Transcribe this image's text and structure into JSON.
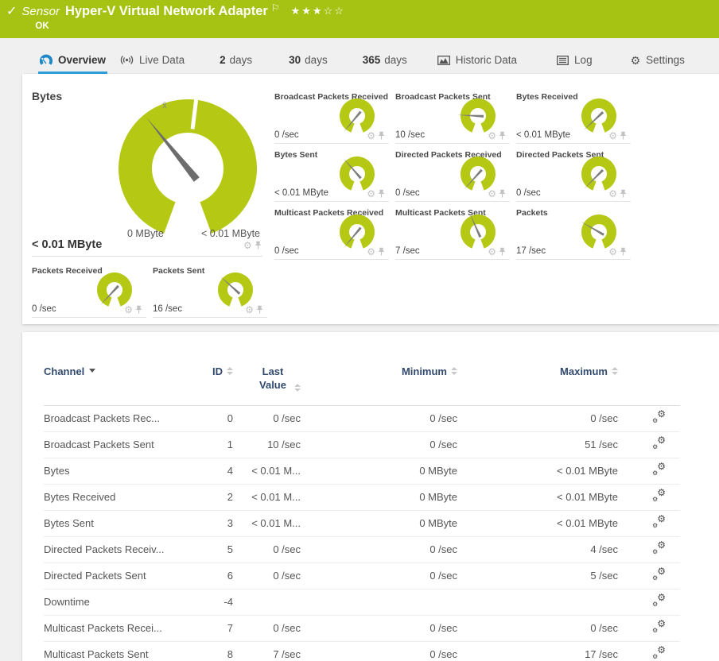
{
  "colors": {
    "header_green": "#a6c313",
    "gauge_green": "#b5c814",
    "accent_blue": "#2e9fd9",
    "table_header_text": "#32496e",
    "page_bg": "#f0f0f0",
    "panel_bg": "#ffffff",
    "needle_gray": "#6d6d6d",
    "icon_gray": "#c2c2c2",
    "tab_icon_gray": "#555555"
  },
  "header": {
    "kind": "Sensor",
    "title": "Hyper-V Virtual Network Adapter",
    "status": "OK",
    "stars_filled": 3,
    "stars_total": 5
  },
  "tabs": [
    {
      "id": "overview",
      "label": "Overview",
      "icon": "gauge-icon",
      "active": true
    },
    {
      "id": "live-data",
      "label": "Live Data",
      "icon": "live-icon",
      "active": false
    },
    {
      "id": "2-days",
      "num": "2",
      "label": "days",
      "active": false
    },
    {
      "id": "30-days",
      "num": "30",
      "label": "days",
      "active": false
    },
    {
      "id": "365-days",
      "num": "365",
      "label": "days",
      "active": false
    },
    {
      "id": "historic-data",
      "label": "Historic Data",
      "icon": "chart-icon",
      "active": false
    },
    {
      "id": "log",
      "label": "Log",
      "icon": "log-icon",
      "active": false
    },
    {
      "id": "settings",
      "label": "Settings",
      "icon": "gear-icon",
      "active": false
    }
  ],
  "gauges": {
    "primary": {
      "name": "Bytes",
      "value": "< 0.01 MByte",
      "scale_min": "0 MByte",
      "scale_max": "< 0.01 MByte",
      "mean_marker": "x̄",
      "needle_angle": 231
    },
    "tiles": [
      {
        "name": "Broadcast Packets Received",
        "value": "0 /sec",
        "needle_angle": 130
      },
      {
        "name": "Broadcast Packets Sent",
        "value": "10 /sec",
        "needle_angle": 183
      },
      {
        "name": "Bytes Received",
        "value": "< 0.01 MByte",
        "needle_angle": 137
      },
      {
        "name": "Bytes Sent",
        "value": "< 0.01 MByte",
        "needle_angle": 229
      },
      {
        "name": "Directed Packets Received",
        "value": "0 /sec",
        "needle_angle": 132
      },
      {
        "name": "Directed Packets Sent",
        "value": "0 /sec",
        "needle_angle": 135
      },
      {
        "name": "Multicast Packets Received",
        "value": "0 /sec",
        "needle_angle": 130
      },
      {
        "name": "Multicast Packets Sent",
        "value": "7 /sec",
        "needle_angle": 246
      },
      {
        "name": "Packets",
        "value": "17 /sec",
        "needle_angle": 210
      },
      {
        "name": "Packets Received",
        "value": "0 /sec",
        "needle_angle": 133
      },
      {
        "name": "Packets Sent",
        "value": "16 /sec",
        "needle_angle": 222
      }
    ]
  },
  "table": {
    "columns": [
      {
        "label": "Channel",
        "sort": "active"
      },
      {
        "label": "ID",
        "sort": "both"
      },
      {
        "label": "Last Value",
        "sort": "both"
      },
      {
        "label": "Minimum",
        "sort": "both"
      },
      {
        "label": "Maximum",
        "sort": "both"
      },
      {
        "label": "",
        "sort": null
      }
    ],
    "rows": [
      {
        "channel": "Broadcast Packets Rec...",
        "id": "0",
        "last_value": "0 /sec",
        "minimum": "0 /sec",
        "maximum": "0 /sec"
      },
      {
        "channel": "Broadcast Packets Sent",
        "id": "1",
        "last_value": "10 /sec",
        "minimum": "0 /sec",
        "maximum": "51 /sec"
      },
      {
        "channel": "Bytes",
        "id": "4",
        "last_value": "< 0.01 M...",
        "minimum": "0 MByte",
        "maximum": "< 0.01 MByte"
      },
      {
        "channel": "Bytes Received",
        "id": "2",
        "last_value": "< 0.01 M...",
        "minimum": "0 MByte",
        "maximum": "< 0.01 MByte"
      },
      {
        "channel": "Bytes Sent",
        "id": "3",
        "last_value": "< 0.01 M...",
        "minimum": "0 MByte",
        "maximum": "< 0.01 MByte"
      },
      {
        "channel": "Directed Packets Receiv...",
        "id": "5",
        "last_value": "0 /sec",
        "minimum": "0 /sec",
        "maximum": "4 /sec"
      },
      {
        "channel": "Directed Packets Sent",
        "id": "6",
        "last_value": "0 /sec",
        "minimum": "0 /sec",
        "maximum": "5 /sec"
      },
      {
        "channel": "Downtime",
        "id": "-4",
        "last_value": "",
        "minimum": "",
        "maximum": ""
      },
      {
        "channel": "Multicast Packets Recei...",
        "id": "7",
        "last_value": "0 /sec",
        "minimum": "0 /sec",
        "maximum": "0 /sec"
      },
      {
        "channel": "Multicast Packets Sent",
        "id": "8",
        "last_value": "7 /sec",
        "minimum": "0 /sec",
        "maximum": "17 /sec"
      }
    ]
  }
}
